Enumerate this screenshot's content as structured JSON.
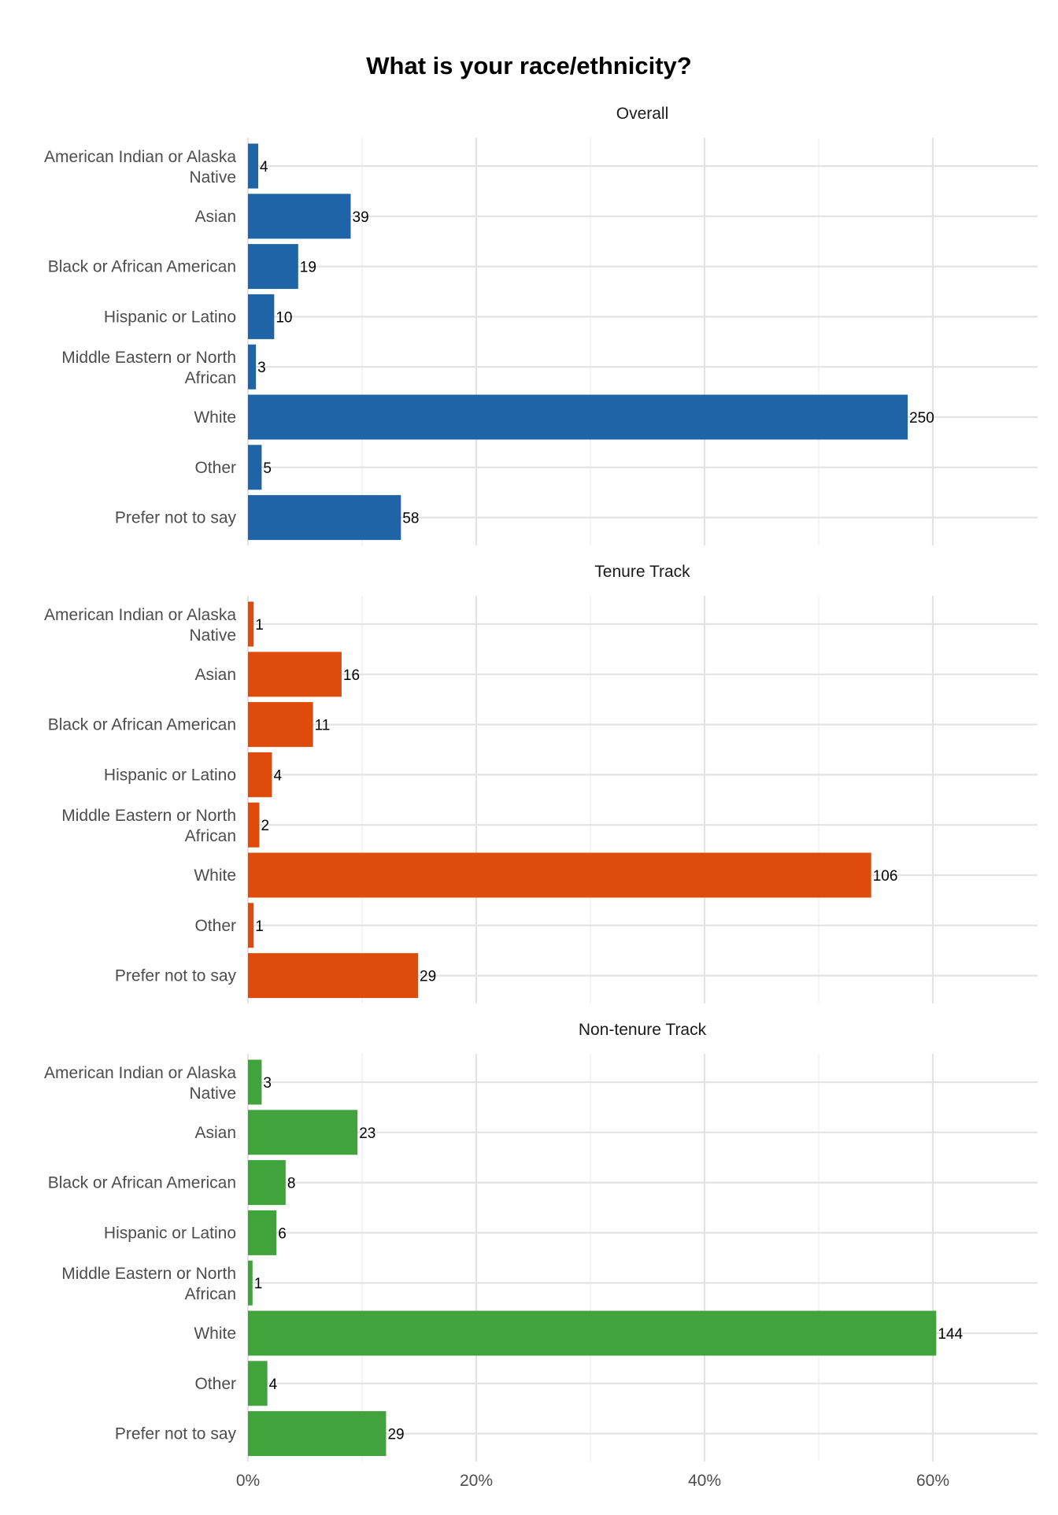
{
  "chart_data": {
    "type": "bar",
    "orientation": "horizontal",
    "title": "What is your race/ethnicity?",
    "value_format": "percent",
    "x_ticks": [
      "0%",
      "20%",
      "40%",
      "60%"
    ],
    "xlim": [
      0,
      0.69
    ],
    "grid": true,
    "categories": [
      "American Indian or Alaska Native",
      "Asian",
      "Black or African American",
      "Hispanic or Latino",
      "Middle Eastern or North African",
      "White",
      "Other",
      "Prefer not to say"
    ],
    "category_lines": [
      [
        "American Indian or Alaska",
        "Native"
      ],
      [
        "Asian"
      ],
      [
        "Black or African American"
      ],
      [
        "Hispanic or Latino"
      ],
      [
        "Middle Eastern or North",
        "African"
      ],
      [
        "White"
      ],
      [
        "Other"
      ],
      [
        "Prefer not to say"
      ]
    ],
    "panels": [
      {
        "name": "Overall",
        "color": "#1f64a6",
        "counts": [
          4,
          39,
          19,
          10,
          3,
          250,
          5,
          58
        ],
        "shares": [
          0.009,
          0.09,
          0.044,
          0.023,
          0.007,
          0.578,
          0.012,
          0.134
        ]
      },
      {
        "name": "Tenure Track",
        "color": "#de4b0b",
        "counts": [
          1,
          16,
          11,
          4,
          2,
          106,
          1,
          29
        ],
        "shares": [
          0.005,
          0.082,
          0.057,
          0.021,
          0.01,
          0.546,
          0.005,
          0.149
        ]
      },
      {
        "name": "Non-tenure Track",
        "color": "#40a33b",
        "counts": [
          3,
          23,
          8,
          6,
          1,
          144,
          4,
          29
        ],
        "shares": [
          0.012,
          0.096,
          0.033,
          0.025,
          0.004,
          0.603,
          0.017,
          0.121
        ]
      }
    ]
  }
}
